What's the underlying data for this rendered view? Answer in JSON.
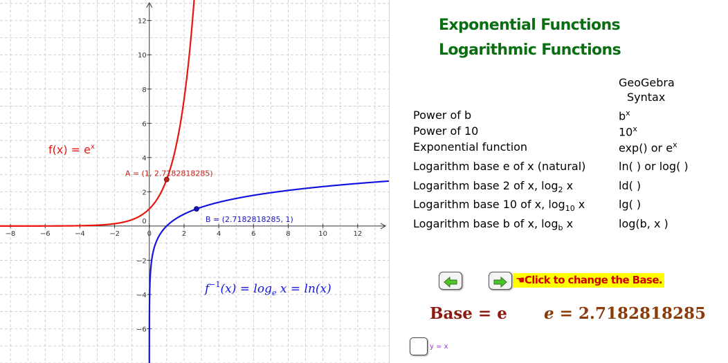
{
  "titles": [
    "Exponential Functions",
    "Logarithmic Functions"
  ],
  "syntax_header": [
    "GeoGebra",
    "Syntax"
  ],
  "table": [
    {
      "label": "Power of b",
      "syntax_main": "b",
      "syntax_sup": "x",
      "syntax_rest": ""
    },
    {
      "label": "Power of 10",
      "syntax_main": "10",
      "syntax_sup": "x",
      "syntax_rest": ""
    },
    {
      "label": "Exponential function",
      "syntax_main": "exp() or e",
      "syntax_sup": "x",
      "syntax_rest": ""
    },
    {
      "label": "Logarithm base e of x (natural)",
      "syntax_main": "ln( ) or log( )",
      "syntax_sup": "",
      "syntax_rest": ""
    },
    {
      "label_main": "Logarithm base 2 of x,  log",
      "label_sub": "2",
      "label_rest": " x",
      "syntax_main": "ld( )",
      "syntax_sup": "",
      "syntax_rest": ""
    },
    {
      "label_main": "Logarithm base 10 of x,  log",
      "label_sub": "10",
      "label_rest": " x",
      "syntax_main": "lg( )",
      "syntax_sup": "",
      "syntax_rest": ""
    },
    {
      "label_main": "Logarithm base b of x,  log",
      "label_sub": "b",
      "label_rest": " x",
      "syntax_main": "log(b,  x )",
      "syntax_sup": "",
      "syntax_rest": ""
    }
  ],
  "controls": {
    "hint": "☚Click to change the Base.",
    "base_label": "Base = e",
    "e_value_var": "e",
    "e_value_rest": " = 2.7182818285",
    "checkbox_label": "y = x"
  },
  "colors": {
    "exp": "#e8140e",
    "log": "#1414e0",
    "title": "#0b6e12",
    "hint_bg": "#ffff00",
    "hint_text": "#d10000",
    "base": "#8b1a10"
  },
  "chart_data": {
    "type": "line",
    "x_range": [
      -8.6,
      13.8
    ],
    "y_range": [
      -8,
      13.2
    ],
    "x_ticks": [
      -8,
      -6,
      -4,
      -2,
      0,
      2,
      4,
      6,
      8,
      10,
      12
    ],
    "y_ticks": [
      -6,
      -4,
      -2,
      0,
      2,
      4,
      6,
      8,
      10,
      12
    ],
    "grid": true,
    "series": [
      {
        "name": "f(x) = eˣ",
        "label_main": "f(x) = e",
        "label_sup": "x",
        "function": "exp",
        "color": "#e8140e"
      },
      {
        "name": "f⁻¹(x) = logₑ x  =  ln(x)",
        "label_f": "f",
        "label_sup": "−1",
        "label_rest": "(x) = log",
        "label_sub": "e",
        "label_end": " x  =  ln(x)",
        "function": "ln",
        "color": "#1414e0"
      }
    ],
    "points": [
      {
        "label": "A = (1, 2.7182818285)",
        "x": 1,
        "y": 2.7182818285,
        "color": "#c0201a"
      },
      {
        "label": "B = (2.7182818285, 1)",
        "x": 2.7182818285,
        "y": 1,
        "color": "#1414c0"
      }
    ]
  }
}
